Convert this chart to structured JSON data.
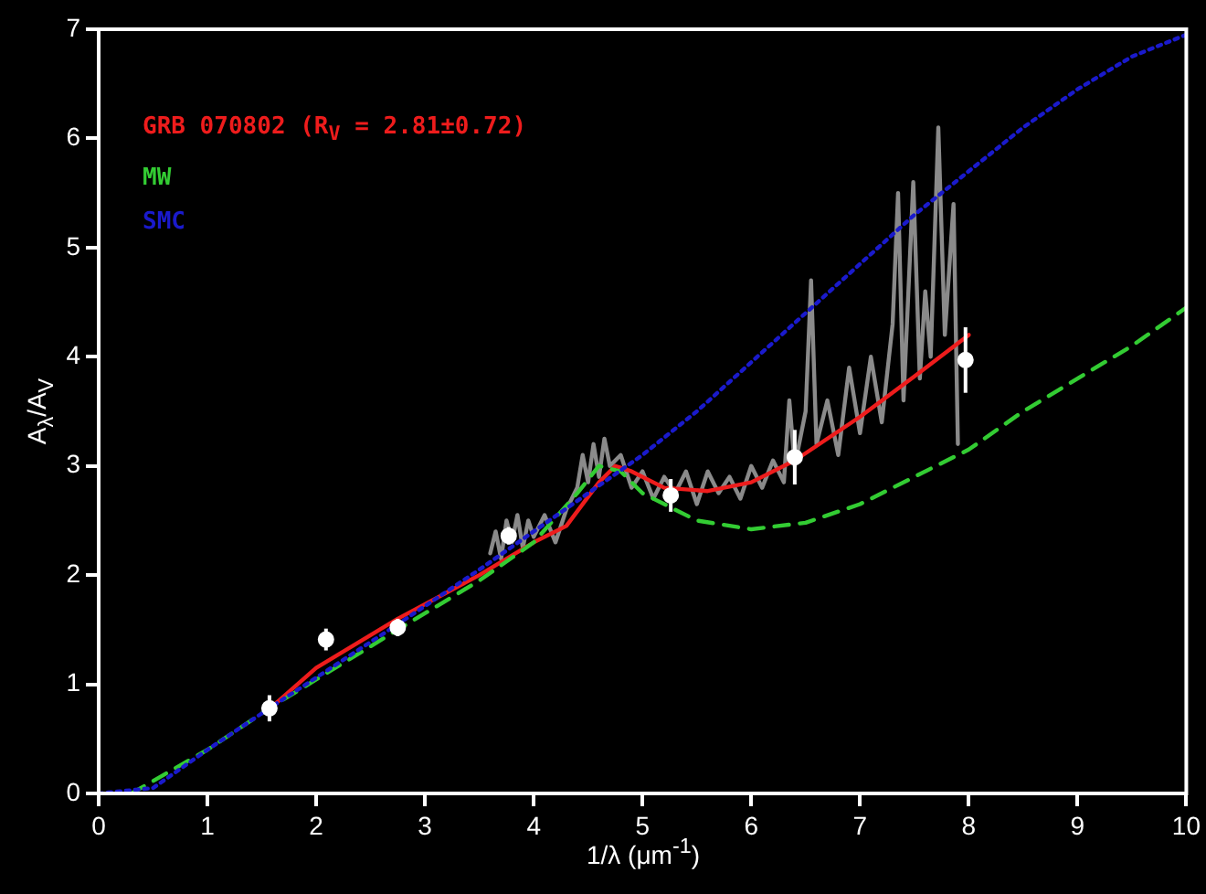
{
  "chart_data": {
    "type": "line",
    "xlabel": "1/λ (μm$^{-1}$)",
    "ylabel": "A$_{λ}$/A$_{V}$",
    "xlim": [
      0,
      10
    ],
    "ylim": [
      0,
      7
    ],
    "xticks": [
      0,
      1,
      2,
      3,
      4,
      5,
      6,
      7,
      8,
      9,
      10
    ],
    "yticks": [
      0,
      1,
      2,
      3,
      4,
      5,
      6,
      7
    ],
    "grid": false,
    "legend": "top left",
    "series": [
      {
        "type": "line",
        "color": "#8a8a8a",
        "line_style": "solid",
        "marker": "none",
        "x": [
          3.6,
          3.65,
          3.7,
          3.75,
          3.8,
          3.85,
          3.9,
          3.95,
          4.0,
          4.1,
          4.2,
          4.3,
          4.4,
          4.45,
          4.5,
          4.55,
          4.6,
          4.65,
          4.7,
          4.8,
          4.9,
          5.0,
          5.1,
          5.2,
          5.3,
          5.4,
          5.5,
          5.6,
          5.7,
          5.8,
          5.9,
          6.0,
          6.1,
          6.2,
          6.3,
          6.35,
          6.4,
          6.5,
          6.55,
          6.6,
          6.7,
          6.8,
          6.9,
          7.0,
          7.1,
          7.2,
          7.3,
          7.35,
          7.4,
          7.49,
          7.55,
          7.6,
          7.65,
          7.72,
          7.78,
          7.86,
          7.9
        ],
        "values": [
          2.2,
          2.4,
          2.15,
          2.5,
          2.3,
          2.55,
          2.25,
          2.5,
          2.35,
          2.55,
          2.3,
          2.6,
          2.8,
          3.1,
          2.85,
          3.2,
          2.9,
          3.25,
          3.0,
          3.1,
          2.8,
          2.95,
          2.7,
          2.9,
          2.75,
          2.95,
          2.65,
          2.95,
          2.75,
          2.9,
          2.7,
          3.0,
          2.8,
          3.05,
          2.85,
          3.6,
          3.0,
          3.5,
          4.7,
          3.2,
          3.6,
          3.1,
          3.9,
          3.3,
          4.0,
          3.4,
          4.3,
          5.5,
          3.6,
          5.6,
          3.8,
          4.6,
          4.0,
          6.1,
          4.2,
          5.4,
          3.2
        ]
      },
      {
        "type": "line",
        "name": "GRB 070802 (R$_{V}$ = 2.81±0.72)",
        "color": "#ee1c1c",
        "line_style": "solid",
        "marker": "none",
        "x": [
          1.6,
          2.0,
          2.75,
          3.5,
          4.0,
          4.3,
          4.6,
          4.75,
          4.9,
          5.2,
          5.6,
          6.0,
          6.4,
          7.0,
          7.5,
          8.0
        ],
        "values": [
          0.8,
          1.15,
          1.6,
          2.0,
          2.3,
          2.45,
          2.85,
          3.0,
          2.95,
          2.8,
          2.77,
          2.85,
          3.05,
          3.45,
          3.82,
          4.2
        ]
      },
      {
        "type": "line",
        "name": "MW",
        "color": "#33cc33",
        "line_style": "dashed",
        "marker": "none",
        "x": [
          0.3,
          1.0,
          1.6,
          2.75,
          3.5,
          4.0,
          4.4,
          4.6,
          4.8,
          5.0,
          5.5,
          6.0,
          6.5,
          7.0,
          7.5,
          8.0,
          8.5,
          9.0,
          9.5,
          10.0
        ],
        "values": [
          0,
          0.4,
          0.8,
          1.5,
          1.95,
          2.3,
          2.75,
          3.0,
          2.95,
          2.75,
          2.5,
          2.42,
          2.48,
          2.65,
          2.9,
          3.15,
          3.5,
          3.8,
          4.1,
          4.45
        ]
      },
      {
        "type": "line",
        "name": "SMC",
        "color": "#1a1acc",
        "line_style": "dotted",
        "marker": "none",
        "x": [
          0,
          0.5,
          1.0,
          1.6,
          2.75,
          3.5,
          4.0,
          4.5,
          5.0,
          5.5,
          6.0,
          6.5,
          7.0,
          7.5,
          8.0,
          8.5,
          9.0,
          9.5,
          10.0
        ],
        "values": [
          0,
          0.05,
          0.4,
          0.8,
          1.55,
          2.05,
          2.4,
          2.75,
          3.1,
          3.5,
          3.95,
          4.4,
          4.85,
          5.3,
          5.7,
          6.1,
          6.45,
          6.75,
          6.95
        ]
      },
      {
        "type": "scatter",
        "color": "#ffffff",
        "marker": "circle",
        "x": [
          1.57,
          2.09,
          2.75,
          3.77,
          5.26,
          6.4,
          7.97
        ],
        "values": [
          0.78,
          1.41,
          1.52,
          2.36,
          2.73,
          3.08,
          3.97
        ],
        "errors": [
          0.12,
          0.1,
          0.08,
          0.08,
          0.15,
          0.25,
          0.3
        ]
      }
    ]
  }
}
